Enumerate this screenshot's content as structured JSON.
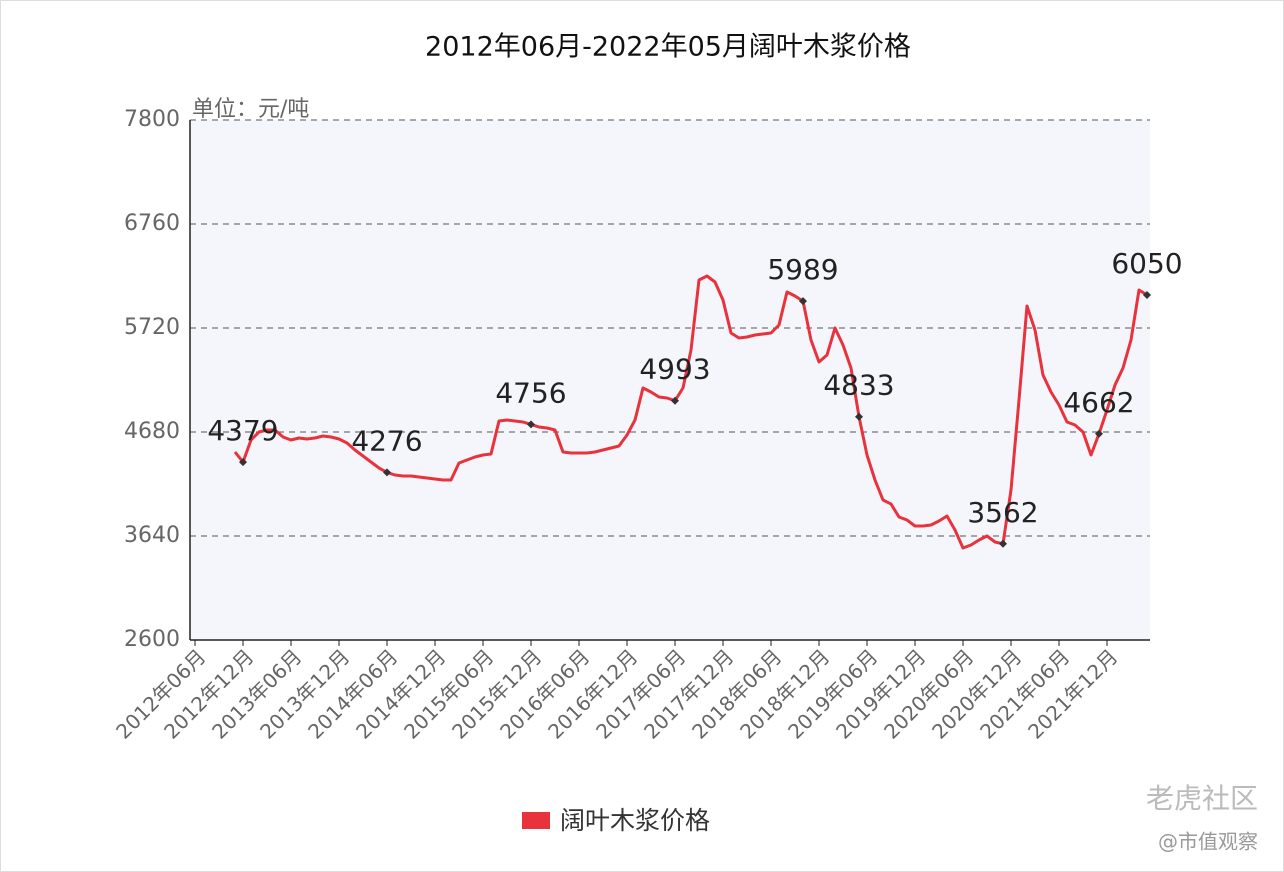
{
  "chart_data": {
    "type": "line",
    "title": "2012年06月-2022年05月阔叶木浆价格",
    "y_unit": "单位：元/吨",
    "categories": [
      "2012年06月",
      null,
      null,
      null,
      null,
      null,
      "2012年12月",
      null,
      null,
      null,
      null,
      null,
      "2013年06月",
      null,
      null,
      null,
      null,
      null,
      "2013年12月",
      null,
      null,
      null,
      null,
      null,
      "2014年06月",
      null,
      null,
      null,
      null,
      null,
      "2014年12月",
      null,
      null,
      null,
      null,
      null,
      "2015年06月",
      null,
      null,
      null,
      null,
      null,
      "2015年12月",
      null,
      null,
      null,
      null,
      null,
      "2016年06月",
      null,
      null,
      null,
      null,
      null,
      "2016年12月",
      null,
      null,
      null,
      null,
      null,
      "2017年06月",
      null,
      null,
      null,
      null,
      null,
      "2017年12月",
      null,
      null,
      null,
      null,
      null,
      "2018年06月",
      null,
      null,
      null,
      null,
      null,
      "2018年12月",
      null,
      null,
      null,
      null,
      null,
      "2019年06月",
      null,
      null,
      null,
      null,
      null,
      "2019年12月",
      null,
      null,
      null,
      null,
      null,
      "2020年06月",
      null,
      null,
      null,
      null,
      null,
      "2020年12月",
      null,
      null,
      null,
      null,
      null,
      "2021年06月",
      null,
      null,
      null,
      null,
      null,
      "2021年12月",
      null,
      null,
      null,
      null,
      null
    ],
    "series": [
      {
        "name": "阔叶木浆价格",
        "color": "#e8323c",
        "values": [
          null,
          null,
          null,
          null,
          null,
          4480,
          4379,
          4600,
          4680,
          4700,
          4700,
          4630,
          4600,
          4620,
          4610,
          4620,
          4640,
          4630,
          4610,
          4570,
          4500,
          4440,
          4380,
          4320,
          4276,
          4250,
          4240,
          4240,
          4230,
          4220,
          4210,
          4200,
          4200,
          4370,
          4400,
          4430,
          4450,
          4460,
          4790,
          4800,
          4790,
          4780,
          4756,
          4730,
          4720,
          4700,
          4480,
          4470,
          4470,
          4470,
          4480,
          4500,
          4520,
          4540,
          4650,
          4800,
          5120,
          5080,
          5030,
          5020,
          4993,
          5120,
          5500,
          6200,
          6240,
          6180,
          6000,
          5670,
          5620,
          5630,
          5650,
          5660,
          5670,
          5750,
          6080,
          6040,
          5989,
          5600,
          5380,
          5450,
          5720,
          5550,
          5320,
          4833,
          4450,
          4200,
          4000,
          3960,
          3830,
          3800,
          3740,
          3740,
          3750,
          3790,
          3840,
          3700,
          3520,
          3550,
          3600,
          3640,
          3580,
          3562,
          4100,
          5000,
          5940,
          5700,
          5250,
          5080,
          4950,
          4780,
          4750,
          4680,
          4450,
          4662,
          4900,
          5150,
          5320,
          5600,
          6100,
          6050
        ],
        "value_labels": [
          null,
          null,
          null,
          null,
          null,
          null,
          4379,
          null,
          null,
          null,
          null,
          null,
          null,
          null,
          null,
          null,
          null,
          null,
          null,
          null,
          null,
          null,
          null,
          null,
          4276,
          null,
          null,
          null,
          null,
          null,
          null,
          null,
          null,
          null,
          null,
          null,
          null,
          null,
          null,
          null,
          null,
          null,
          4756,
          null,
          null,
          null,
          null,
          null,
          null,
          null,
          null,
          null,
          null,
          null,
          null,
          null,
          null,
          null,
          null,
          null,
          4993,
          null,
          null,
          null,
          null,
          null,
          null,
          null,
          null,
          null,
          null,
          null,
          null,
          null,
          null,
          null,
          5989,
          null,
          null,
          null,
          null,
          null,
          null,
          4833,
          null,
          null,
          null,
          null,
          null,
          null,
          null,
          null,
          null,
          null,
          null,
          null,
          null,
          null,
          null,
          null,
          null,
          3562,
          null,
          null,
          null,
          null,
          null,
          null,
          null,
          null,
          null,
          null,
          null,
          4662,
          null,
          null,
          null,
          null,
          null,
          6050
        ]
      }
    ],
    "ylim": [
      2600,
      7800
    ],
    "yticks": [
      2600,
      3640,
      4680,
      5720,
      6760,
      7800
    ],
    "grid": true,
    "legend": "bottom",
    "watermark": {
      "brand": "老虎社区",
      "handle": "@市值观察"
    }
  }
}
